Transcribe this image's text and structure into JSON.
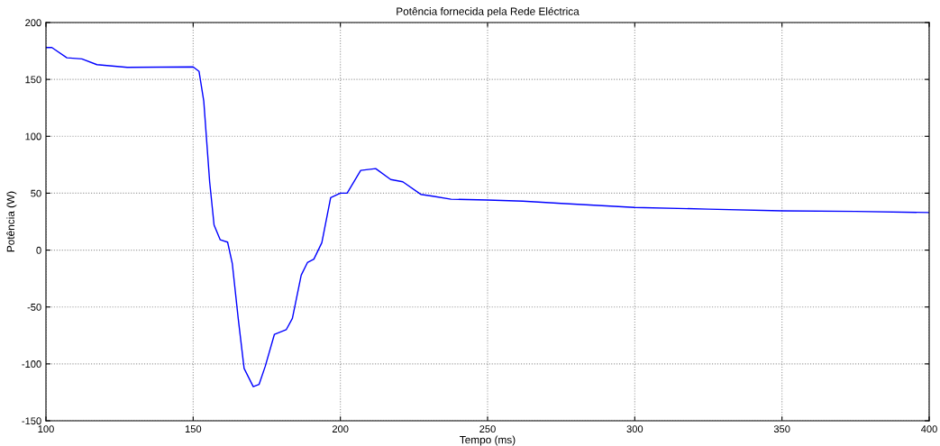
{
  "chart_data": {
    "type": "line",
    "title": "Potência fornecida pela Rede Eléctrica",
    "xlabel": "Tempo (ms)",
    "ylabel": "Potência (W)",
    "x": [
      100,
      102,
      107.1,
      112.2,
      117.3,
      127.6,
      150,
      152,
      153.6,
      155.6,
      157.1,
      159.2,
      161.7,
      163.3,
      165.3,
      167.3,
      170.4,
      172.4,
      174.5,
      177.6,
      181.6,
      183.7,
      186.7,
      188.8,
      191,
      193.7,
      196.7,
      200,
      202.3,
      206.9,
      212,
      217.1,
      221.2,
      227.3,
      231.4,
      237.6,
      250,
      262,
      275,
      300,
      325,
      350,
      375,
      400
    ],
    "series": [
      {
        "color": "#0000ff",
        "values": [
          178,
          178,
          169,
          168,
          163,
          160.6,
          161,
          157,
          131,
          60,
          22,
          9,
          7,
          -12,
          -60,
          -104,
          -120,
          -118,
          -102,
          -74,
          -70,
          -60,
          -22,
          -11,
          -8,
          6.5,
          46,
          50,
          50,
          70,
          71.6,
          62,
          60,
          49,
          47.4,
          44.7,
          44,
          43,
          41,
          37.5,
          36,
          34.5,
          34,
          33
        ]
      }
    ],
    "xlim": [
      100,
      400
    ],
    "ylim": [
      -150,
      200
    ],
    "xticks": [
      100,
      150,
      200,
      250,
      300,
      350,
      400
    ],
    "yticks": [
      -150,
      -100,
      -50,
      0,
      50,
      100,
      150,
      200
    ],
    "grid": true,
    "line_style": "solid",
    "marker": "none",
    "legend": false
  }
}
